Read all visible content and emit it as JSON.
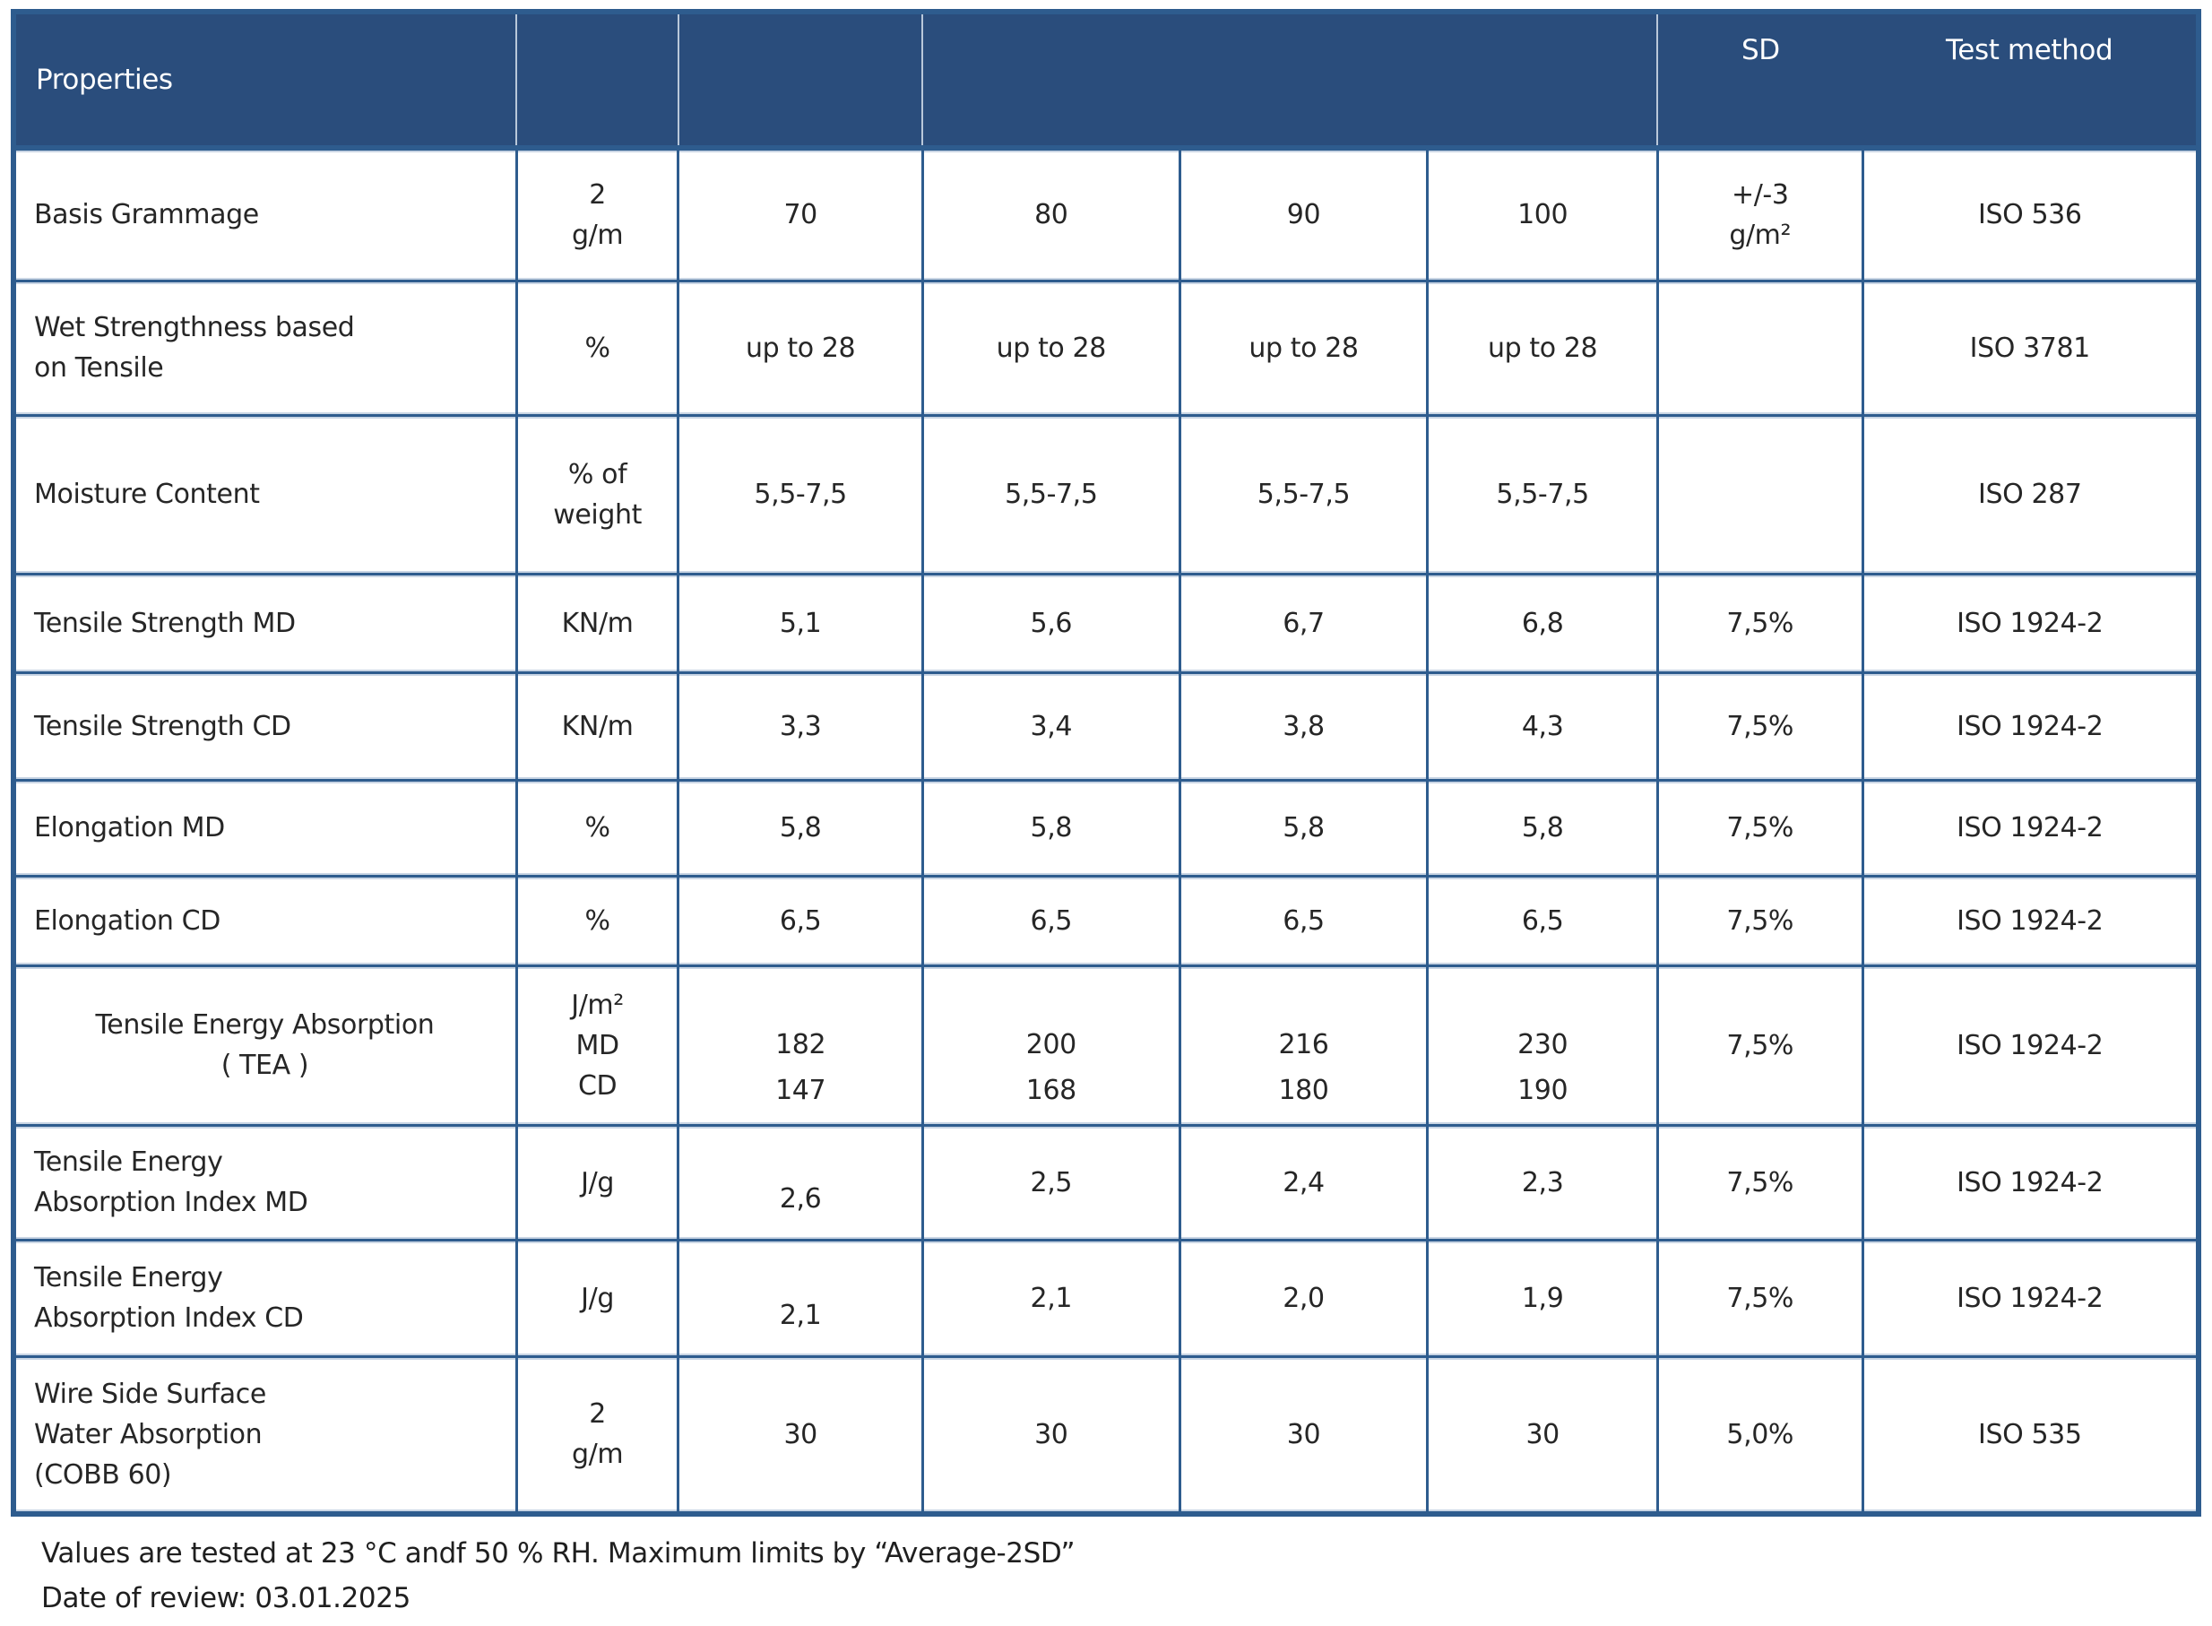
{
  "colors": {
    "header_bg": "#2a4d7c",
    "border": "#2e5c8e",
    "halo": "#c9d5e4",
    "header_divider": "#b9c8da",
    "header_text": "#ffffff",
    "body_text": "#262626"
  },
  "table": {
    "header": {
      "properties": "Properties",
      "sd": "SD",
      "test_method": "Test method"
    },
    "rows": [
      {
        "property": "Basis Grammage",
        "unit": "2\ng/m",
        "values": [
          "70",
          "80",
          "90",
          "100"
        ],
        "sd": "+/-3\ng/m²",
        "method": "ISO 536"
      },
      {
        "property": "Wet Strengthness based\non Tensile",
        "unit": "%",
        "values": [
          "up to 28",
          "up to 28",
          "up to 28",
          "up to 28"
        ],
        "sd": "",
        "method": "ISO 3781"
      },
      {
        "property": "Moisture Content",
        "unit": "% of\nweight",
        "values": [
          "5,5-7,5",
          "5,5-7,5",
          "5,5-7,5",
          "5,5-7,5"
        ],
        "sd": "",
        "method": "ISO 287"
      },
      {
        "property": "Tensile Strength MD",
        "unit": "KN/m",
        "values": [
          "5,1",
          "5,6",
          "6,7",
          "6,8"
        ],
        "sd": "7,5%",
        "method": "ISO 1924-2"
      },
      {
        "property": "Tensile Strength CD",
        "unit": "KN/m",
        "values": [
          "3,3",
          "3,4",
          "3,8",
          "4,3"
        ],
        "sd": "7,5%",
        "method": "ISO 1924-2"
      },
      {
        "property": "Elongation MD",
        "unit": "%",
        "values": [
          "5,8",
          "5,8",
          "5,8",
          "5,8"
        ],
        "sd": "7,5%",
        "method": "ISO 1924-2"
      },
      {
        "property": "Elongation CD",
        "unit": "%",
        "values": [
          "6,5",
          "6,5",
          "6,5",
          "6,5"
        ],
        "sd": "7,5%",
        "method": "ISO 1924-2"
      },
      {
        "property": "Tensile Energy Absorption\n( TEA )",
        "unit": "J/m²\nMD\nCD",
        "values": [
          "182\n147",
          "200\n168",
          "216\n180",
          "230\n190"
        ],
        "sd": "7,5%",
        "method": "ISO 1924-2"
      },
      {
        "property": "Tensile Energy\nAbsorption Index MD",
        "unit": "J/g",
        "values": [
          "2,6",
          "2,5",
          "2,4",
          "2,3"
        ],
        "sd": "7,5%",
        "method": "ISO 1924-2"
      },
      {
        "property": "Tensile Energy\nAbsorption Index CD",
        "unit": "J/g",
        "values": [
          "2,1",
          "2,1",
          "2,0",
          "1,9"
        ],
        "sd": "7,5%",
        "method": "ISO 1924-2"
      },
      {
        "property": "Wire Side Surface\nWater Absorption\n(COBB 60)",
        "unit": "2\ng/m",
        "values": [
          "30",
          "30",
          "30",
          "30"
        ],
        "sd": "5,0%",
        "method": "ISO 535"
      }
    ]
  },
  "footer": {
    "line1": "Values are tested at 23 °C andf 50 % RH. Maximum limits by “Average-2SD”",
    "line2": "Date of review: 03.01.2025"
  }
}
